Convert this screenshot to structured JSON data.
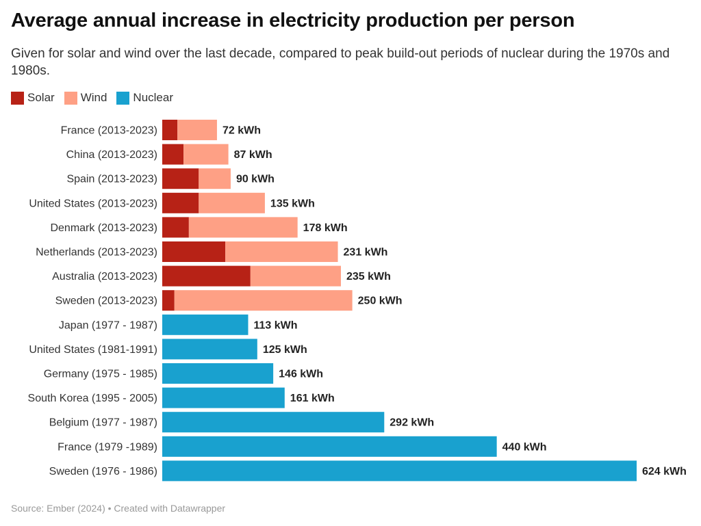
{
  "title": "Average annual increase in electricity production per person",
  "subtitle": "Given for solar and wind over the last decade, compared to peak build-out periods of nuclear during the 1970s and 1980s.",
  "source": "Source: Ember (2024) • Created with Datawrapper",
  "colors": {
    "solar": "#b72216",
    "wind": "#fea085",
    "nuclear": "#19a1cf"
  },
  "legend": [
    {
      "label": "Solar",
      "key": "solar"
    },
    {
      "label": "Wind",
      "key": "wind"
    },
    {
      "label": "Nuclear",
      "key": "nuclear"
    }
  ],
  "chart_data": {
    "type": "bar",
    "orientation": "horizontal",
    "stacked": true,
    "unit": "kWh",
    "xlim": [
      0,
      624
    ],
    "grid": false,
    "legend_position": "top-left",
    "categories": [
      "France (2013-2023)",
      "China (2013-2023)",
      "Spain (2013-2023)",
      "United States (2013-2023)",
      "Denmark (2013-2023)",
      "Netherlands (2013-2023)",
      "Australia (2013-2023)",
      "Sweden (2013-2023)",
      "Japan (1977 - 1987)",
      "United States (1981-1991)",
      "Germany (1975 - 1985)",
      "South Korea (1995 - 2005)",
      "Belgium (1977 - 1987)",
      "France (1979 -1989)",
      "Sweden (1976 - 1986)"
    ],
    "series": [
      {
        "name": "Solar",
        "key": "solar",
        "values": [
          20,
          28,
          48,
          48,
          35,
          83,
          116,
          16,
          0,
          0,
          0,
          0,
          0,
          0,
          0
        ]
      },
      {
        "name": "Wind",
        "key": "wind",
        "values": [
          52,
          59,
          42,
          87,
          143,
          148,
          119,
          234,
          0,
          0,
          0,
          0,
          0,
          0,
          0
        ]
      },
      {
        "name": "Nuclear",
        "key": "nuclear",
        "values": [
          0,
          0,
          0,
          0,
          0,
          0,
          0,
          0,
          113,
          125,
          146,
          161,
          292,
          440,
          624
        ]
      }
    ],
    "totals": [
      72,
      87,
      90,
      135,
      178,
      231,
      235,
      250,
      113,
      125,
      146,
      161,
      292,
      440,
      624
    ],
    "value_labels": [
      "72 kWh",
      "87 kWh",
      "90 kWh",
      "135 kWh",
      "178 kWh",
      "231 kWh",
      "235 kWh",
      "250 kWh",
      "113 kWh",
      "125 kWh",
      "146 kWh",
      "161 kWh",
      "292 kWh",
      "440 kWh",
      "624 kWh"
    ]
  }
}
